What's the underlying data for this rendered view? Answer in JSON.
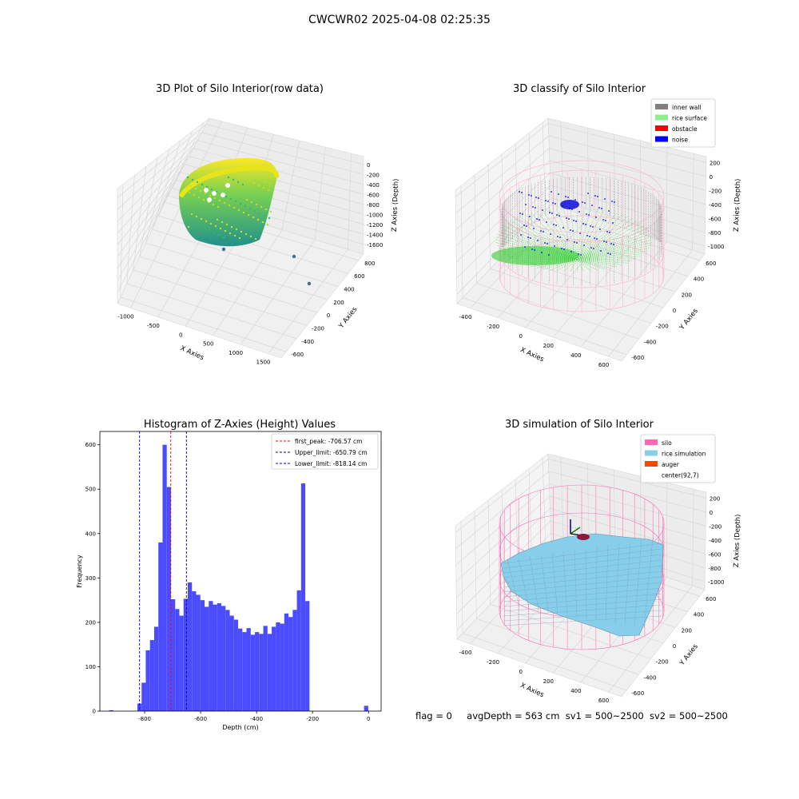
{
  "suptitle": "CWCWR02 2025-04-08 02:25:35",
  "chart_data": [
    {
      "type": "scatter",
      "title": "3D Plot of Silo Interior(row data)",
      "xlabel": "X Axies",
      "ylabel": "Y Axies",
      "zlabel": "Z Axies (Depth)",
      "xticks": [
        "-1000",
        "-500",
        "0",
        "500",
        "1000",
        "1500"
      ],
      "yticks": [
        "-600",
        "-400",
        "-200",
        "0",
        "200",
        "400",
        "600",
        "800"
      ],
      "zticks": [
        "0",
        "-200",
        "-400",
        "-600",
        "-800",
        "-1000",
        "-1200",
        "-1400",
        "-1600"
      ],
      "colormap": [
        "#440154",
        "#21918c",
        "#fde725"
      ]
    },
    {
      "type": "scatter",
      "title": "3D classify of Silo Interior",
      "xlabel": "X Axies",
      "ylabel": "Y Axies",
      "zlabel": "Z Axies (Depth)",
      "xticks": [
        "-400",
        "-200",
        "0",
        "200",
        "400",
        "600"
      ],
      "yticks": [
        "-600",
        "-400",
        "-200",
        "0",
        "200",
        "400",
        "600"
      ],
      "zticks": [
        "200",
        "0",
        "-200",
        "-400",
        "-600",
        "-800",
        "-1000"
      ],
      "legend_position": "top-right",
      "legend": [
        {
          "label": "inner wall",
          "color": "#808080"
        },
        {
          "label": "rice surface",
          "color": "#90ee90"
        },
        {
          "label": "obstacle",
          "color": "#ff0000"
        },
        {
          "label": "noise",
          "color": "#0000ff"
        }
      ]
    },
    {
      "type": "bar",
      "title": "Histogram of Z-Axies (Height) Values",
      "xlabel": "Depth (cm)",
      "ylabel": "Frequency",
      "xlim": [
        -960,
        45
      ],
      "ylim": [
        0,
        630
      ],
      "xticks": [
        -800,
        -600,
        -400,
        -200,
        0
      ],
      "yticks": [
        0,
        100,
        200,
        300,
        400,
        500,
        600
      ],
      "bar_color": "#4c4cff",
      "bins": [
        {
          "x0": -927,
          "x1": -912,
          "count": 2
        },
        {
          "x0": -826,
          "x1": -811,
          "count": 17
        },
        {
          "x0": -811,
          "x1": -796,
          "count": 64
        },
        {
          "x0": -796,
          "x1": -781,
          "count": 137
        },
        {
          "x0": -781,
          "x1": -766,
          "count": 160
        },
        {
          "x0": -766,
          "x1": -751,
          "count": 190
        },
        {
          "x0": -751,
          "x1": -736,
          "count": 380
        },
        {
          "x0": -736,
          "x1": -721,
          "count": 600
        },
        {
          "x0": -721,
          "x1": -706,
          "count": 505
        },
        {
          "x0": -706,
          "x1": -691,
          "count": 252
        },
        {
          "x0": -691,
          "x1": -676,
          "count": 230
        },
        {
          "x0": -676,
          "x1": -661,
          "count": 215
        },
        {
          "x0": -661,
          "x1": -646,
          "count": 253
        },
        {
          "x0": -646,
          "x1": -631,
          "count": 290
        },
        {
          "x0": -631,
          "x1": -616,
          "count": 270
        },
        {
          "x0": -616,
          "x1": -601,
          "count": 262
        },
        {
          "x0": -601,
          "x1": -586,
          "count": 250
        },
        {
          "x0": -586,
          "x1": -571,
          "count": 235
        },
        {
          "x0": -571,
          "x1": -556,
          "count": 248
        },
        {
          "x0": -556,
          "x1": -541,
          "count": 240
        },
        {
          "x0": -541,
          "x1": -526,
          "count": 243
        },
        {
          "x0": -526,
          "x1": -511,
          "count": 237
        },
        {
          "x0": -511,
          "x1": -496,
          "count": 228
        },
        {
          "x0": -496,
          "x1": -481,
          "count": 215
        },
        {
          "x0": -481,
          "x1": -466,
          "count": 206
        },
        {
          "x0": -466,
          "x1": -451,
          "count": 186
        },
        {
          "x0": -451,
          "x1": -436,
          "count": 178
        },
        {
          "x0": -436,
          "x1": -421,
          "count": 187
        },
        {
          "x0": -421,
          "x1": -406,
          "count": 172
        },
        {
          "x0": -406,
          "x1": -391,
          "count": 178
        },
        {
          "x0": -391,
          "x1": -376,
          "count": 174
        },
        {
          "x0": -376,
          "x1": -361,
          "count": 192
        },
        {
          "x0": -361,
          "x1": -346,
          "count": 174
        },
        {
          "x0": -346,
          "x1": -331,
          "count": 190
        },
        {
          "x0": -331,
          "x1": -316,
          "count": 200
        },
        {
          "x0": -316,
          "x1": -301,
          "count": 197
        },
        {
          "x0": -301,
          "x1": -286,
          "count": 220
        },
        {
          "x0": -286,
          "x1": -271,
          "count": 212
        },
        {
          "x0": -271,
          "x1": -256,
          "count": 228
        },
        {
          "x0": -256,
          "x1": -241,
          "count": 272
        },
        {
          "x0": -241,
          "x1": -226,
          "count": 513
        },
        {
          "x0": -226,
          "x1": -211,
          "count": 248
        },
        {
          "x0": -16,
          "x1": -1,
          "count": 12
        }
      ],
      "vlines": [
        {
          "x": -706.57,
          "label": "first_peak: -706.57 cm",
          "color": "#ff0000"
        },
        {
          "x": -650.79,
          "label": "Upper_limit: -650.79 cm",
          "color": "#00008b"
        },
        {
          "x": -818.14,
          "label": "Lower_limit: -818.14 cm",
          "color": "#0000ff"
        }
      ],
      "legend_position": "top-right"
    },
    {
      "type": "surface",
      "title": "3D simulation of Silo Interior",
      "xlabel": "X Axies",
      "ylabel": "Y Axies",
      "zlabel": "Z Axies (Depth)",
      "xticks": [
        "-400",
        "-200",
        "0",
        "200",
        "400",
        "600"
      ],
      "yticks": [
        "-600",
        "-400",
        "-200",
        "0",
        "200",
        "400",
        "600"
      ],
      "zticks": [
        "200",
        "0",
        "-200",
        "-400",
        "-600",
        "-800",
        "-1000"
      ],
      "legend_position": "top-right",
      "legend": [
        {
          "label": "silo",
          "color": "#ff69b4"
        },
        {
          "label": "rice simulation",
          "color": "#87ceeb"
        },
        {
          "label": "auger",
          "color": "#ff4500"
        },
        {
          "label": "center(92,7)",
          "color": ""
        }
      ]
    }
  ],
  "footer": {
    "flag": "flag = 0",
    "avg": "avgDepth = 563 cm",
    "sv1": "sv1 = 500~2500",
    "sv2": "sv2 = 500~2500"
  }
}
